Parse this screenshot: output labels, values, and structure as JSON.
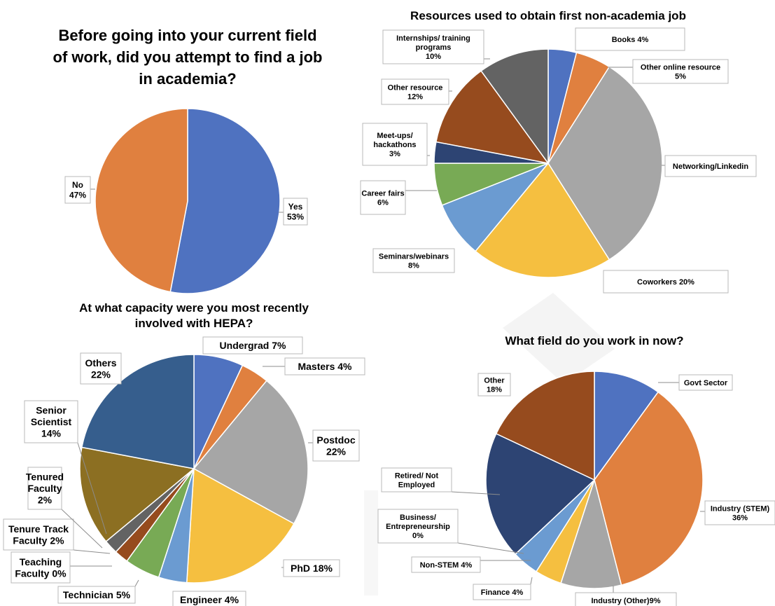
{
  "chart_data": [
    {
      "type": "pie",
      "title": "Before going into your current field of work, did you attempt to find a job in academia?",
      "title_lines": [
        "Before going into your current field",
        "of work, did you attempt to find a job",
        "in academia?"
      ],
      "slices": [
        {
          "name": "Yes",
          "value": 53,
          "label": "Yes\n53%",
          "color": "#4f72c0"
        },
        {
          "name": "No",
          "value": 47,
          "label": "No\n47%",
          "color": "#e0803f"
        }
      ]
    },
    {
      "type": "pie",
      "title": "Resources used to obtain first non-academia job",
      "title_lines": [
        "Resources used to obtain first non-academia job"
      ],
      "slices": [
        {
          "name": "Books",
          "value": 4,
          "label": "Books 4%",
          "color": "#4f72c0"
        },
        {
          "name": "Other online resource",
          "value": 5,
          "label": "Other online resource\n5%",
          "color": "#e0803f"
        },
        {
          "name": "Networking/Linkedin",
          "value": 32,
          "label": "Networking/Linkedin",
          "color": "#a6a6a6"
        },
        {
          "name": "Coworkers",
          "value": 20,
          "label": "Coworkers 20%",
          "color": "#f5bf40"
        },
        {
          "name": "Seminars/webinars",
          "value": 8,
          "label": "Seminars/webinars\n8%",
          "color": "#6b9bd1"
        },
        {
          "name": "Career fairs",
          "value": 6,
          "label": "Career fairs\n6%",
          "color": "#78aa55"
        },
        {
          "name": "Meet-ups/ hackathons",
          "value": 3,
          "label": "Meet-ups/\nhackathons\n3%",
          "color": "#2d4473"
        },
        {
          "name": "Other resource",
          "value": 12,
          "label": "Other resource\n12%",
          "color": "#964b1e"
        },
        {
          "name": "Internships/ training programs",
          "value": 10,
          "label": "Internships/ training\nprograms\n10%",
          "color": "#636363"
        }
      ]
    },
    {
      "type": "pie",
      "title": "At what capacity were you most recently involved with HEPA?",
      "title_lines": [
        "At what capacity were you most recently",
        "involved with HEPA?"
      ],
      "slices": [
        {
          "name": "Undergrad",
          "value": 7,
          "label": "Undergrad 7%",
          "color": "#4f72c0"
        },
        {
          "name": "Masters",
          "value": 4,
          "label": "Masters 4%",
          "color": "#e0803f"
        },
        {
          "name": "Postdoc",
          "value": 22,
          "label": "Postdoc\n22%",
          "color": "#a6a6a6"
        },
        {
          "name": "PhD",
          "value": 18,
          "label": "PhD 18%",
          "color": "#f5bf40"
        },
        {
          "name": "Engineer",
          "value": 4,
          "label": "Engineer 4%",
          "color": "#6b9bd1"
        },
        {
          "name": "Technician",
          "value": 5,
          "label": "Technician 5%",
          "color": "#78aa55"
        },
        {
          "name": "Teaching Faculty",
          "value": 0,
          "label": "Teaching\nFaculty 0%",
          "color": "#2d4473"
        },
        {
          "name": "Tenure Track Faculty",
          "value": 2,
          "label": "Tenure Track\nFaculty 2%",
          "color": "#964b1e"
        },
        {
          "name": "Tenured Faculty",
          "value": 2,
          "label": "Tenured\nFaculty\n2%",
          "color": "#636363"
        },
        {
          "name": "Senior Scientist",
          "value": 14,
          "label": "Senior\nScientist\n14%",
          "color": "#8c6f22"
        },
        {
          "name": "Others",
          "value": 22,
          "label": "Others\n22%",
          "color": "#365e8d"
        }
      ]
    },
    {
      "type": "pie",
      "title": "What field do you work in now?",
      "title_lines": [
        "What field do you work in now?"
      ],
      "slices": [
        {
          "name": "Govt Sector",
          "value": 10,
          "label": "Govt Sector",
          "color": "#4f72c0"
        },
        {
          "name": "Industry (STEM)",
          "value": 36,
          "label": "Industry (STEM)\n36%",
          "color": "#e0803f"
        },
        {
          "name": "Industry (Other)",
          "value": 9,
          "label": "Industry (Other)9%",
          "color": "#a6a6a6"
        },
        {
          "name": "Finance",
          "value": 4,
          "label": "Finance 4%",
          "color": "#f5bf40"
        },
        {
          "name": "Non-STEM",
          "value": 4,
          "label": "Non-STEM 4%",
          "color": "#6b9bd1"
        },
        {
          "name": "Business/ Entrepreneurship",
          "value": 0,
          "label": "Business/\nEntrepreneurship\n0%",
          "color": "#78aa55"
        },
        {
          "name": "Retired/ Not Employed",
          "value": 19,
          "label": "Retired/ Not\nEmployed",
          "color": "#2d4473"
        },
        {
          "name": "Other",
          "value": 18,
          "label": "Other\n18%",
          "color": "#964b1e"
        }
      ]
    }
  ]
}
